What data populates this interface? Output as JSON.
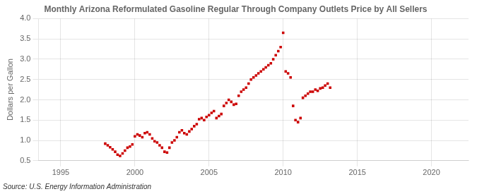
{
  "chart_data": {
    "type": "scatter",
    "title": "Monthly Arizona Reformulated Gasoline Regular Through Company Outlets Price by All Sellers",
    "ylabel": "Dollars per Gallon",
    "source": "Source: U.S. Energy Information Administration",
    "color": "#cc0000",
    "marker": "square",
    "grid": true,
    "xlim": [
      1993.5,
      2022.5
    ],
    "ylim": [
      0.5,
      4.0
    ],
    "xticks": [
      1995,
      2000,
      2005,
      2010,
      2015,
      2020
    ],
    "yticks": [
      {
        "value": 0.5,
        "label": "0.5"
      },
      {
        "value": 1.0,
        "label": "1.0"
      },
      {
        "value": 1.5,
        "label": "1.5"
      },
      {
        "value": 2.0,
        "label": "2.0"
      },
      {
        "value": 2.5,
        "label": "2.5"
      },
      {
        "value": 3.0,
        "label": "3.0"
      },
      {
        "value": 3.5,
        "label": "3.5"
      },
      {
        "value": 4.0,
        "label": "4.0"
      }
    ],
    "x": [
      1998.0,
      1998.17,
      1998.33,
      1998.5,
      1998.67,
      1998.83,
      1999.0,
      1999.17,
      1999.33,
      1999.5,
      1999.67,
      1999.83,
      2000.0,
      2000.17,
      2000.33,
      2000.5,
      2000.67,
      2000.83,
      2001.0,
      2001.17,
      2001.33,
      2001.5,
      2001.67,
      2001.83,
      2002.0,
      2002.17,
      2002.33,
      2002.5,
      2002.67,
      2002.83,
      2003.0,
      2003.17,
      2003.33,
      2003.5,
      2003.67,
      2003.83,
      2004.0,
      2004.17,
      2004.33,
      2004.5,
      2004.67,
      2004.83,
      2005.0,
      2005.17,
      2005.33,
      2005.5,
      2005.67,
      2005.83,
      2006.0,
      2006.17,
      2006.33,
      2006.5,
      2006.67,
      2006.83,
      2007.0,
      2007.17,
      2007.33,
      2007.5,
      2007.67,
      2007.83,
      2008.0,
      2008.17,
      2008.33,
      2008.5,
      2008.67,
      2008.83,
      2009.0,
      2009.17,
      2009.33,
      2009.5,
      2009.67,
      2009.83,
      2010.0,
      2010.17,
      2010.33,
      2010.5,
      2010.67,
      2010.83,
      2011.0,
      2011.17,
      2011.33,
      2011.5,
      2011.67,
      2011.83,
      2012.0,
      2012.17,
      2012.33,
      2012.5,
      2012.67,
      2012.83,
      2013.0,
      2013.17
    ],
    "values": [
      0.92,
      0.88,
      0.83,
      0.78,
      0.72,
      0.65,
      0.62,
      0.68,
      0.75,
      0.82,
      0.85,
      0.9,
      1.1,
      1.15,
      1.12,
      1.08,
      1.18,
      1.2,
      1.15,
      1.05,
      0.98,
      0.95,
      0.88,
      0.82,
      0.72,
      0.7,
      0.82,
      0.95,
      1.0,
      1.08,
      1.2,
      1.25,
      1.18,
      1.15,
      1.22,
      1.28,
      1.35,
      1.4,
      1.52,
      1.55,
      1.5,
      1.58,
      1.62,
      1.68,
      1.72,
      1.55,
      1.6,
      1.65,
      1.85,
      1.92,
      2.0,
      1.95,
      1.88,
      1.9,
      2.1,
      2.2,
      2.25,
      2.3,
      2.4,
      2.5,
      2.55,
      2.6,
      2.65,
      2.7,
      2.75,
      2.8,
      2.85,
      2.9,
      3.0,
      3.1,
      3.2,
      3.3,
      3.65,
      2.7,
      2.65,
      2.55,
      1.85,
      1.5,
      1.45,
      1.55,
      2.05,
      2.1,
      2.15,
      2.2,
      2.2,
      2.25,
      2.22,
      2.28,
      2.3,
      2.35,
      2.4,
      2.3
    ]
  }
}
